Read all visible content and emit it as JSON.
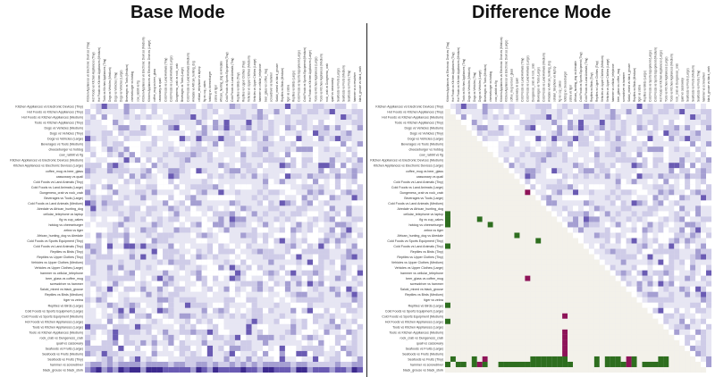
{
  "titles": {
    "base": "Base Mode",
    "difference": "Difference Mode"
  },
  "colors": {
    "grid_background": "#e7e6f3",
    "cell_light": "#cfcce8",
    "cell_mid": "#a59fd2",
    "cell_dark": "#6a5bb3",
    "cell_darkest": "#3d2a8e",
    "diff_triangle": "#f3f1ea",
    "diff_positive": "#2e6e1f",
    "diff_negative": "#8e1458"
  },
  "heatmap": {
    "labels": [
      "Kitchen Appliances vs Electronic Devices (Tiny)",
      "Hot Foods vs Kitchen Appliances (Tiny)",
      "Hot Foods vs Kitchen Appliances (Medium)",
      "Tools vs Kitchen Appliances (Tiny)",
      "Dogs vs Vehicles (Medium)",
      "Dogs vs Vehicles (Tiny)",
      "Dogs vs Vehicles (Large)",
      "Beverages vs Tools (Medium)",
      "cheeseburger vs hotdog",
      "cow_rabbit vs fig",
      "Kitchen Appliances vs Electronic Devices (Medium)",
      "Kitchen Appliances vs Electronic Devices (Large)",
      "coffee_mug vs beer_glass",
      "cassowary vs quail",
      "Cold Foods vs Land Animals (Tiny)",
      "Cold Foods vs Land Animals (Large)",
      "Dungeness_crab vs rock_crab",
      "Beverages vs Tools (Large)",
      "Cold Foods vs Land Animals (Medium)",
      "Airedale vs African_hunting_dog",
      "cellular_telephone vs laptop",
      "fig vs cup_cakes",
      "hotdog vs cheeseburger",
      "zebra vs tiger",
      "African_hunting_dog vs Airedale",
      "Cold Foods vs Sports Equipment (Tiny)",
      "Cold Foods vs Land Animals (Tiny)",
      "Reptiles vs Birds (Tiny)",
      "Reptiles vs Upper Clothes (Tiny)",
      "Vehicles vs Upper Clothes (Medium)",
      "Vehicles vs Upper Clothes (Large)",
      "hammer vs cellular_telephone",
      "beer_glass vs coffee_mug",
      "screwdriver vs hammer",
      "Saluki_mixed vs black_grouse",
      "Reptiles vs Birds (Medium)",
      "tiger vs zebra",
      "Reptiles vs Birds (Large)",
      "Cold Foods vs Sports Equipment (Large)",
      "Cold Foods vs Sports Equipment (Medium)",
      "Hot Foods vs Kitchen Appliances (Large)",
      "Tools vs Kitchen Appliances (Large)",
      "Tools vs Kitchen Appliances (Medium)",
      "rock_crab vs Dungeness_crab",
      "quail vs cassowary",
      "Seafoods vs Fruits (Large)",
      "Seafoods vs Fruits (Medium)",
      "Seafoods vs Fruits (Tiny)",
      "hammer vs screwdriver",
      "black_grouse vs black_stork"
    ],
    "diff_positive_cells": [
      [
        20,
        0
      ],
      [
        21,
        0
      ],
      [
        22,
        0
      ],
      [
        21,
        6
      ],
      [
        22,
        8
      ],
      [
        26,
        0
      ],
      [
        37,
        0
      ],
      [
        40,
        0
      ],
      [
        48,
        0
      ],
      [
        48,
        2
      ],
      [
        48,
        3
      ],
      [
        48,
        5
      ],
      [
        48,
        7
      ],
      [
        48,
        10
      ],
      [
        48,
        11
      ],
      [
        48,
        12
      ],
      [
        48,
        13
      ],
      [
        48,
        14
      ],
      [
        48,
        15
      ],
      [
        48,
        16
      ],
      [
        48,
        17
      ],
      [
        48,
        18
      ],
      [
        48,
        19
      ],
      [
        48,
        20
      ],
      [
        48,
        21
      ],
      [
        48,
        22
      ],
      [
        48,
        23
      ],
      [
        48,
        28
      ],
      [
        48,
        30
      ],
      [
        48,
        31
      ],
      [
        48,
        32
      ],
      [
        48,
        33
      ],
      [
        48,
        35
      ],
      [
        48,
        37
      ],
      [
        48,
        38
      ],
      [
        48,
        39
      ],
      [
        48,
        40
      ],
      [
        48,
        41
      ],
      [
        47,
        1
      ],
      [
        47,
        5
      ],
      [
        47,
        16
      ],
      [
        47,
        17
      ],
      [
        47,
        18
      ],
      [
        47,
        19
      ],
      [
        47,
        20
      ],
      [
        47,
        21
      ],
      [
        47,
        22
      ],
      [
        47,
        28
      ],
      [
        47,
        30
      ],
      [
        47,
        31
      ],
      [
        47,
        32
      ],
      [
        47,
        35
      ],
      [
        47,
        40
      ],
      [
        47,
        41
      ],
      [
        25,
        17
      ],
      [
        24,
        13
      ]
    ],
    "diff_negative_cells": [
      [
        16,
        15
      ],
      [
        32,
        15
      ],
      [
        39,
        22
      ],
      [
        42,
        22
      ],
      [
        43,
        22
      ],
      [
        44,
        22
      ],
      [
        45,
        22
      ],
      [
        46,
        22
      ],
      [
        47,
        7
      ],
      [
        48,
        6
      ],
      [
        48,
        34
      ],
      [
        47,
        34
      ]
    ]
  }
}
